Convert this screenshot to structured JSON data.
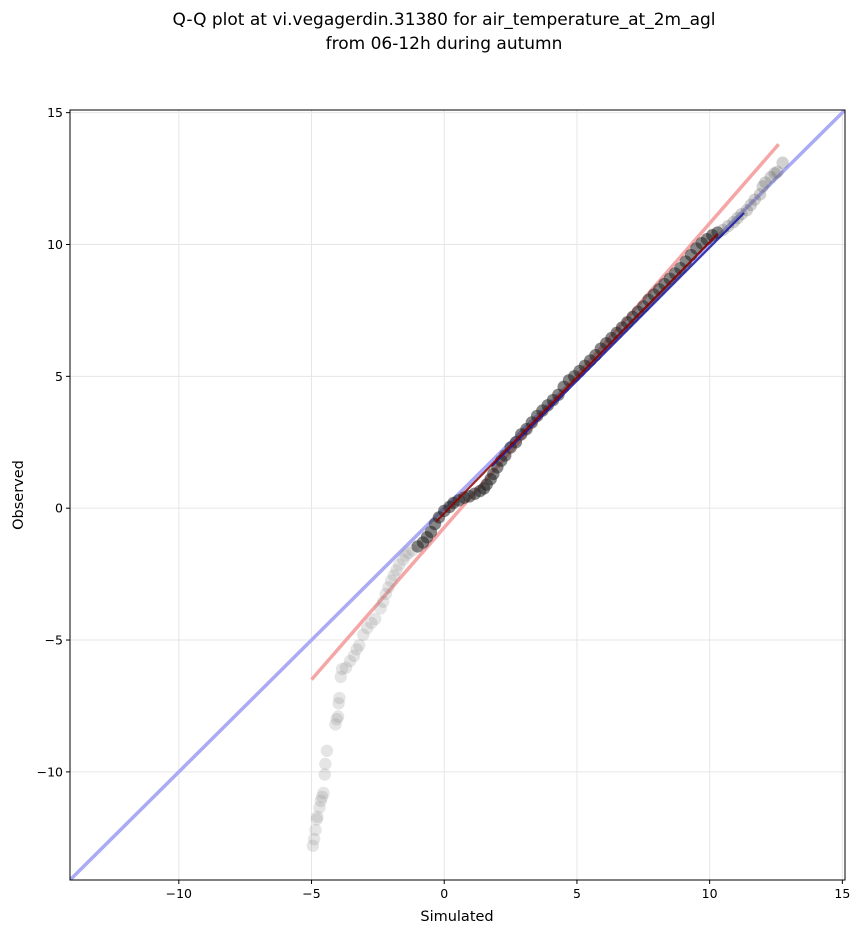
{
  "chart_data": {
    "type": "scatter",
    "title_line1": "Q-Q plot at vi.vegagerdin.31380 for air_temperature_at_2m_agl",
    "title_line2": "from 06-12h during autumn",
    "xlabel": "Simulated",
    "ylabel": "Observed",
    "xlim": [
      -14.1,
      15.1
    ],
    "ylim": [
      -14.1,
      15.1
    ],
    "xticks": [
      -10,
      -5,
      0,
      5,
      10,
      15
    ],
    "yticks": [
      -10,
      -5,
      0,
      5,
      10,
      15
    ],
    "xtick_labels": [
      "−10",
      "−5",
      "0",
      "5",
      "10",
      "15"
    ],
    "ytick_labels": [
      "−10",
      "−5",
      "0",
      "5",
      "10",
      "15"
    ],
    "grid": true,
    "reference_line": {
      "name": "1:1 line",
      "color": "#aaaaf5",
      "from": [
        -14.1,
        -14.1
      ],
      "to": [
        15.1,
        15.1
      ]
    },
    "fit_line": {
      "name": "fit",
      "color": "#f5a6a6",
      "from": [
        -5.0,
        -6.5
      ],
      "to": [
        12.6,
        13.8
      ]
    },
    "inner_line": {
      "color": "#8b0000",
      "from": [
        -0.3,
        -0.5
      ],
      "to": [
        10.3,
        10.4
      ]
    },
    "inner_line_blue": {
      "color": "#1a1aa0",
      "from": [
        1.8,
        1.6
      ],
      "to": [
        11.3,
        11.2
      ]
    },
    "points_tail": [
      [
        -4.95,
        -12.8
      ],
      [
        -4.9,
        -12.55
      ],
      [
        -4.85,
        -12.2
      ],
      [
        -4.8,
        -11.8
      ],
      [
        -4.78,
        -11.7
      ],
      [
        -4.7,
        -11.35
      ],
      [
        -4.65,
        -11.1
      ],
      [
        -4.6,
        -10.95
      ],
      [
        -4.55,
        -10.8
      ],
      [
        -4.5,
        -10.1
      ],
      [
        -4.48,
        -9.7
      ],
      [
        -4.42,
        -9.2
      ],
      [
        -4.1,
        -8.2
      ],
      [
        -4.05,
        -8.0
      ],
      [
        -4.0,
        -7.9
      ],
      [
        -3.98,
        -7.4
      ],
      [
        -3.95,
        -7.2
      ],
      [
        -3.9,
        -6.4
      ],
      [
        -3.85,
        -6.1
      ],
      [
        -3.7,
        -6.05
      ],
      [
        -3.55,
        -5.8
      ],
      [
        -3.4,
        -5.6
      ],
      [
        -3.3,
        -5.35
      ],
      [
        -3.2,
        -5.2
      ],
      [
        -3.05,
        -4.8
      ],
      [
        -2.9,
        -4.55
      ],
      [
        -2.75,
        -4.35
      ],
      [
        -2.6,
        -4.2
      ],
      [
        -2.4,
        -3.8
      ],
      [
        -2.3,
        -3.55
      ],
      [
        -2.2,
        -3.25
      ],
      [
        -2.1,
        -3.0
      ],
      [
        -2.0,
        -2.75
      ],
      [
        -1.9,
        -2.55
      ],
      [
        -1.8,
        -2.35
      ],
      [
        -1.7,
        -2.15
      ],
      [
        -1.55,
        -1.95
      ],
      [
        -1.45,
        -1.8
      ],
      [
        -1.35,
        -1.7
      ],
      [
        -1.2,
        -1.6
      ]
    ],
    "points_mid": [
      [
        -1.0,
        -1.45
      ],
      [
        -0.8,
        -1.3
      ],
      [
        -0.65,
        -1.1
      ],
      [
        -0.5,
        -0.9
      ],
      [
        -0.35,
        -0.6
      ],
      [
        -0.2,
        -0.35
      ],
      [
        0.0,
        -0.1
      ],
      [
        0.2,
        0.05
      ],
      [
        0.35,
        0.2
      ],
      [
        0.55,
        0.3
      ],
      [
        0.75,
        0.4
      ],
      [
        0.95,
        0.45
      ],
      [
        1.15,
        0.55
      ],
      [
        1.35,
        0.65
      ],
      [
        1.5,
        0.75
      ],
      [
        1.6,
        0.9
      ],
      [
        1.75,
        1.1
      ],
      [
        1.85,
        1.3
      ],
      [
        2.0,
        1.55
      ],
      [
        2.15,
        1.8
      ],
      [
        2.3,
        2.0
      ],
      [
        2.5,
        2.3
      ],
      [
        2.7,
        2.5
      ],
      [
        2.9,
        2.8
      ],
      [
        3.1,
        3.0
      ],
      [
        3.3,
        3.25
      ],
      [
        3.5,
        3.5
      ],
      [
        3.7,
        3.7
      ],
      [
        3.9,
        3.9
      ],
      [
        4.1,
        4.1
      ],
      [
        4.3,
        4.3
      ],
      [
        4.5,
        4.6
      ],
      [
        4.7,
        4.85
      ],
      [
        4.9,
        5.0
      ],
      [
        5.1,
        5.2
      ],
      [
        5.3,
        5.4
      ],
      [
        5.5,
        5.6
      ],
      [
        5.7,
        5.8
      ],
      [
        5.9,
        6.05
      ],
      [
        6.1,
        6.25
      ],
      [
        6.3,
        6.45
      ],
      [
        6.5,
        6.65
      ],
      [
        6.7,
        6.85
      ],
      [
        6.9,
        7.05
      ],
      [
        7.1,
        7.25
      ],
      [
        7.3,
        7.45
      ],
      [
        7.5,
        7.65
      ],
      [
        7.7,
        7.9
      ],
      [
        7.9,
        8.1
      ],
      [
        8.1,
        8.3
      ],
      [
        8.3,
        8.5
      ],
      [
        8.5,
        8.7
      ],
      [
        8.7,
        8.9
      ],
      [
        8.9,
        9.1
      ],
      [
        9.1,
        9.35
      ],
      [
        9.3,
        9.6
      ],
      [
        9.5,
        9.85
      ],
      [
        9.7,
        10.05
      ],
      [
        9.9,
        10.2
      ],
      [
        10.1,
        10.35
      ],
      [
        10.3,
        10.45
      ]
    ],
    "points_top": [
      [
        10.5,
        10.55
      ],
      [
        10.7,
        10.7
      ],
      [
        10.9,
        10.85
      ],
      [
        11.05,
        11.0
      ],
      [
        11.2,
        11.15
      ],
      [
        11.4,
        11.3
      ],
      [
        11.55,
        11.5
      ],
      [
        11.7,
        11.7
      ],
      [
        11.9,
        11.9
      ],
      [
        12.0,
        12.2
      ],
      [
        12.1,
        12.35
      ],
      [
        12.3,
        12.55
      ],
      [
        12.45,
        12.7
      ],
      [
        12.55,
        12.75
      ],
      [
        12.75,
        13.1
      ]
    ]
  }
}
